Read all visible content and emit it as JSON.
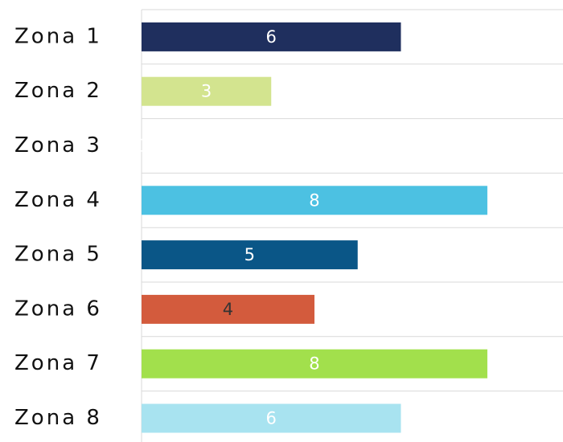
{
  "chart_data": {
    "type": "hbar",
    "categories": [
      "Zona 1",
      "Zona 2",
      "Zona 3",
      "Zona 4",
      "Zona 5",
      "Zona 6",
      "Zona 7",
      "Zona 8"
    ],
    "values": [
      6,
      3,
      0,
      8,
      5,
      4,
      8,
      6
    ],
    "colors": [
      "#1f2f5e",
      "#d3e48f",
      "#ffffff",
      "#4cc1e2",
      "#0a5687",
      "#d35b3d",
      "#a2e04c",
      "#a8e3f0"
    ],
    "label_colors": [
      "#ffffff",
      "#ffffff",
      "#ffffff",
      "#ffffff",
      "#ffffff",
      "#333333",
      "#ffffff",
      "#ffffff"
    ],
    "xlim": [
      0,
      9.75
    ]
  }
}
